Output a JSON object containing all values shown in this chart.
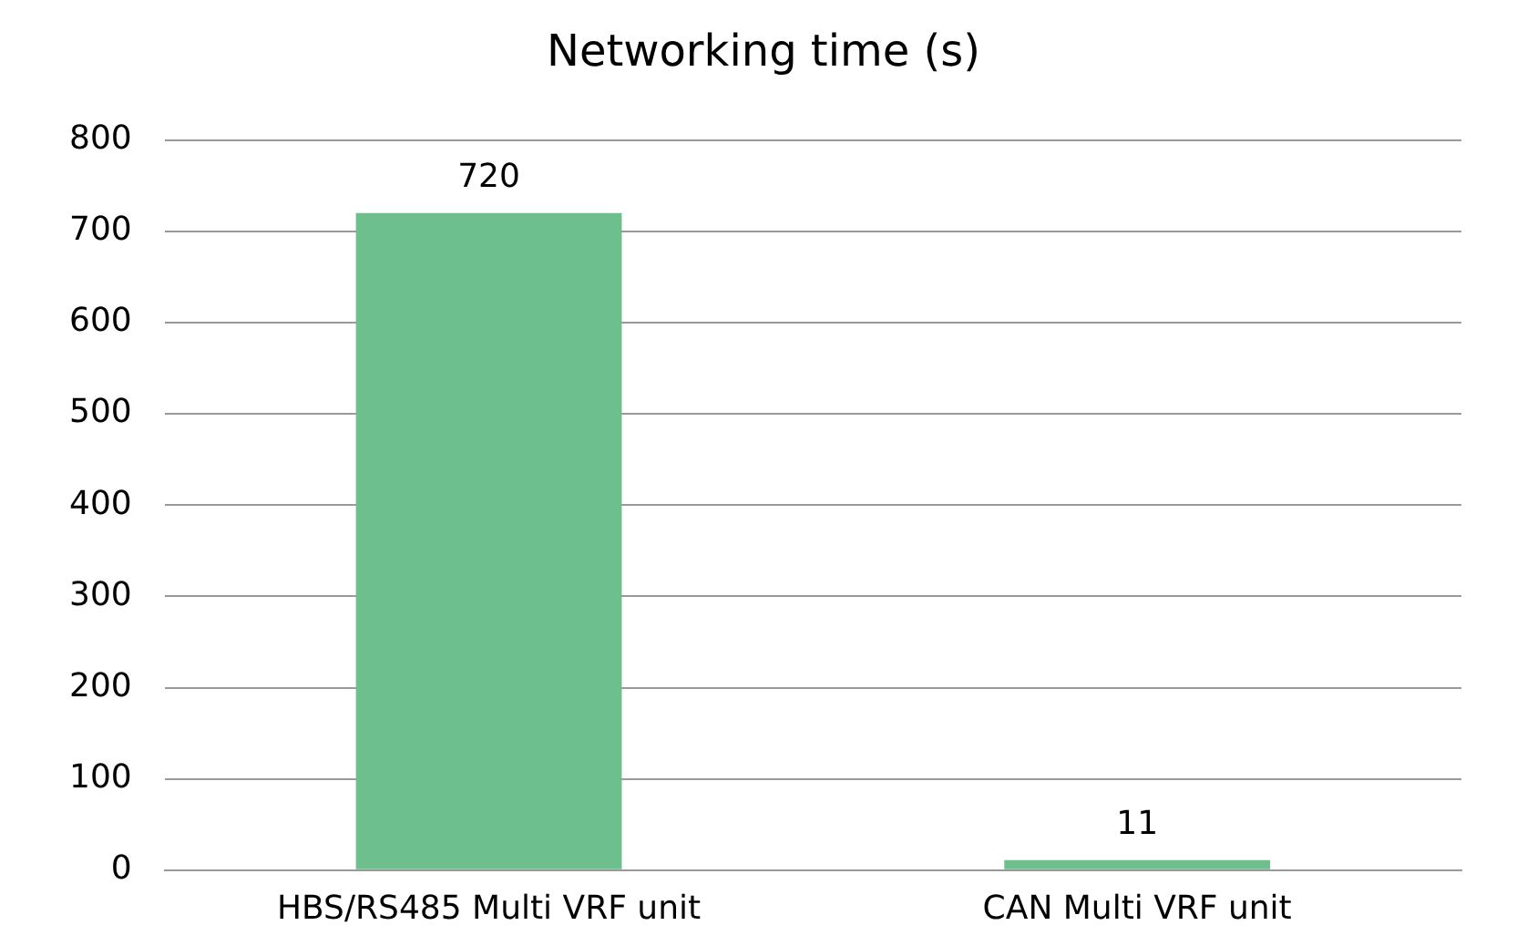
{
  "chart_data": {
    "type": "bar",
    "title": "Networking time (s)",
    "categories": [
      "HBS/RS485 Multi VRF unit",
      "CAN Multi VRF unit"
    ],
    "values": [
      720,
      11
    ],
    "color": "#6dbf8e",
    "ylim": [
      0,
      800
    ],
    "yticks": [
      0,
      100,
      200,
      300,
      400,
      500,
      600,
      700,
      800
    ],
    "grid": "y",
    "data_labels": true,
    "legend": false
  }
}
